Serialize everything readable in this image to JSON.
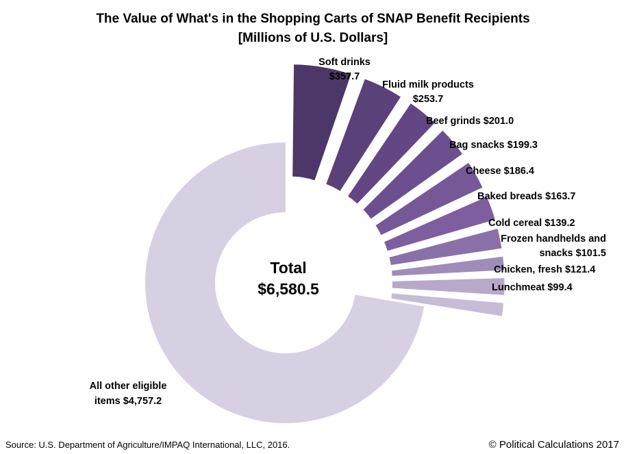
{
  "chart_data": {
    "type": "pie",
    "variant": "exploded-donut",
    "title": "The Value of What's in the Shopping Carts of SNAP Benefit Recipients",
    "subtitle": "[Millions of U.S. Dollars]",
    "units": "Millions of U.S. Dollars",
    "total_label": "Total",
    "total_value": "$6,580.5",
    "total": 6580.5,
    "slices": [
      {
        "name": "Soft drinks",
        "value": 357.7,
        "value_label": "$357.7",
        "label_lines": [
          "Soft drinks",
          "$357.7"
        ],
        "color": "#4d3768"
      },
      {
        "name": "Fluid milk products",
        "value": 253.7,
        "value_label": "$253.7",
        "label_lines": [
          "Fluid milk products",
          "$253.7"
        ],
        "color": "#5a4179"
      },
      {
        "name": "Beef grinds",
        "value": 201.0,
        "value_label": "$201.0",
        "label_lines": [
          "Beef grinds $201.0"
        ],
        "color": "#634784"
      },
      {
        "name": "Bag snacks",
        "value": 199.3,
        "value_label": "$199.3",
        "label_lines": [
          "Bag snacks $199.3"
        ],
        "color": "#6c4f8f"
      },
      {
        "name": "Cheese",
        "value": 186.4,
        "value_label": "$186.4",
        "label_lines": [
          "Cheese $186.4"
        ],
        "color": "#765898"
      },
      {
        "name": "Baked breads",
        "value": 163.7,
        "value_label": "$163.7",
        "label_lines": [
          "Baked breads $163.7"
        ],
        "color": "#7e5e9e"
      },
      {
        "name": "Cold cereal",
        "value": 139.2,
        "value_label": "$139.2",
        "label_lines": [
          "Cold cereal $139.2"
        ],
        "color": "#8a70a8"
      },
      {
        "name": "Frozen handhelds and snacks",
        "value": 101.5,
        "value_label": "$101.5",
        "label_lines": [
          "Frozen handhelds and",
          "snacks $101.5"
        ],
        "color": "#a08cb8"
      },
      {
        "name": "Chicken, fresh",
        "value": 121.4,
        "value_label": "$121.4",
        "label_lines": [
          "Chicken, fresh $121.4"
        ],
        "color": "#b7a9ca"
      },
      {
        "name": "Lunchmeat",
        "value": 99.4,
        "value_label": "$99.4",
        "label_lines": [
          "Lunchmeat $99.4"
        ],
        "color": "#c6bcd6"
      },
      {
        "name": "All other eligible items",
        "value": 4757.2,
        "value_label": "$4,757.2",
        "label_lines": [
          "All other eligible",
          "items $4,757.2"
        ],
        "color": "#d6d0e2"
      }
    ]
  },
  "footer": {
    "source": "Source: U.S. Department of Agriculture/IMPAQ International, LLC, 2016.",
    "credit": "© Political Calculations 2017"
  }
}
